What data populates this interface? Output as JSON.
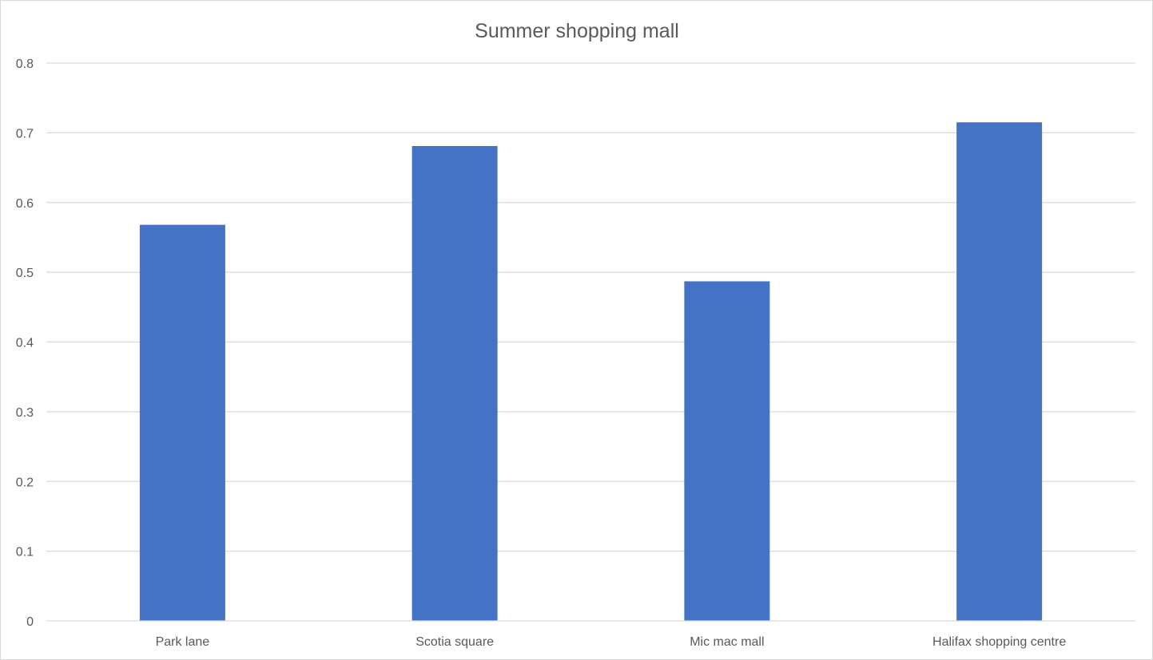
{
  "chart_data": {
    "type": "bar",
    "title": "Summer shopping mall",
    "categories": [
      "Park lane",
      "Scotia square",
      "Mic mac mall",
      "Halifax shopping centre"
    ],
    "values": [
      0.568,
      0.681,
      0.487,
      0.715
    ],
    "xlabel": "",
    "ylabel": "",
    "ylim": [
      0,
      0.8
    ],
    "yticks": [
      "0",
      "0.1",
      "0.2",
      "0.3",
      "0.4",
      "0.5",
      "0.6",
      "0.7",
      "0.8"
    ],
    "grid": true,
    "legend": "none",
    "bar_color": "#4472C4"
  }
}
